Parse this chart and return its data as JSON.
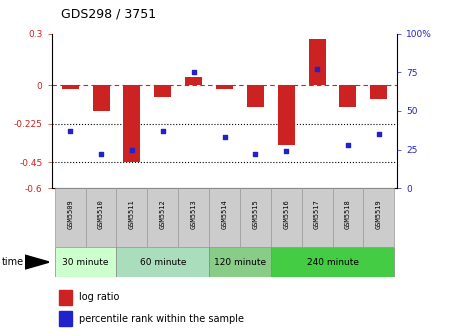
{
  "title": "GDS298 / 3751",
  "samples": [
    "GSM5509",
    "GSM5510",
    "GSM5511",
    "GSM5512",
    "GSM5513",
    "GSM5514",
    "GSM5515",
    "GSM5516",
    "GSM5517",
    "GSM5518",
    "GSM5519"
  ],
  "log_ratio": [
    -0.02,
    -0.15,
    -0.45,
    -0.07,
    0.05,
    -0.02,
    -0.13,
    -0.35,
    0.27,
    -0.13,
    -0.08
  ],
  "percentile_rank": [
    37,
    22,
    25,
    37,
    75,
    33,
    22,
    24,
    77,
    28,
    35
  ],
  "ylim_left": [
    -0.6,
    0.3
  ],
  "ylim_right": [
    0,
    100
  ],
  "yticks_left": [
    0.3,
    0.0,
    -0.225,
    -0.45,
    -0.6
  ],
  "ytick_labels_left": [
    "0.3",
    "0",
    "-0.225",
    "-0.45",
    "-0.6"
  ],
  "yticks_right": [
    100,
    75,
    50,
    25,
    0
  ],
  "ytick_labels_right": [
    "100%",
    "75",
    "50",
    "25",
    "0"
  ],
  "hlines": [
    -0.225,
    -0.45
  ],
  "bar_color": "#cc2222",
  "scatter_color": "#2222cc",
  "dashed_color": "#cc2222",
  "time_groups": [
    {
      "label": "30 minute",
      "start": 0,
      "end": 1,
      "color": "#ccffcc"
    },
    {
      "label": "60 minute",
      "start": 2,
      "end": 4,
      "color": "#aaddbb"
    },
    {
      "label": "120 minute",
      "start": 5,
      "end": 6,
      "color": "#88cc99"
    },
    {
      "label": "240 minute",
      "start": 7,
      "end": 10,
      "color": "#44bb55"
    }
  ],
  "legend_log_ratio": "log ratio",
  "legend_percentile": "percentile rank within the sample",
  "xlabel_time": "time",
  "bg_color_samples": "#cccccc"
}
